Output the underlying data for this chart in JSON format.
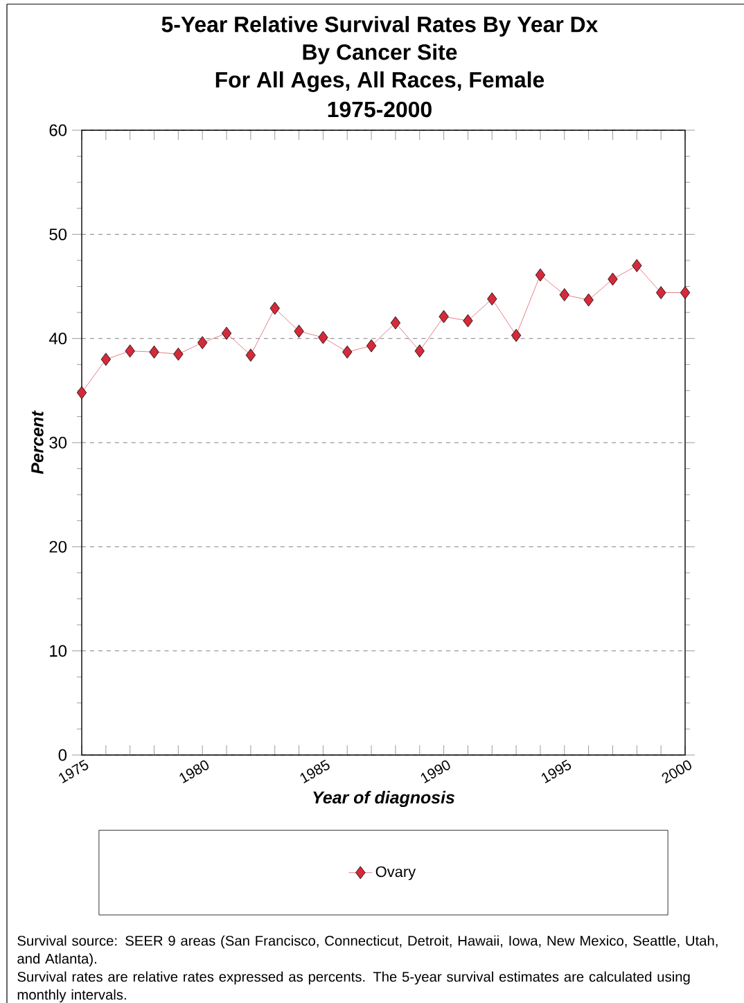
{
  "chart_data": {
    "type": "line",
    "title": "5-Year Relative Survival Rates By Year Dx",
    "subtitle": [
      "By Cancer Site",
      "For All Ages, All Races, Female",
      "1975-2000"
    ],
    "xlabel": "Year of diagnosis",
    "ylabel": "Percent",
    "x": [
      1975,
      1976,
      1977,
      1978,
      1979,
      1980,
      1981,
      1982,
      1983,
      1984,
      1985,
      1986,
      1987,
      1988,
      1989,
      1990,
      1991,
      1992,
      1993,
      1994,
      1995,
      1996,
      1997,
      1998,
      1999,
      2000
    ],
    "series": [
      {
        "name": "Ovary",
        "color": "#d42a3a",
        "values": [
          34.8,
          38.0,
          38.8,
          38.7,
          38.5,
          39.6,
          40.5,
          38.4,
          42.9,
          40.7,
          40.1,
          38.7,
          39.3,
          41.5,
          38.8,
          42.1,
          41.7,
          43.8,
          40.3,
          46.1,
          44.2,
          43.7,
          45.7,
          47.0,
          44.4,
          44.4
        ]
      }
    ],
    "xlim": [
      1975,
      2000
    ],
    "xticks": [
      1975,
      {
        "value": 1976,
        "label": null
      },
      {
        "value": 1977,
        "label": null
      },
      {
        "value": 1978,
        "label": null
      },
      {
        "value": 1979,
        "label": null
      },
      1980,
      {
        "value": 1981,
        "label": null
      },
      {
        "value": 1982,
        "label": null
      },
      {
        "value": 1983,
        "label": null
      },
      {
        "value": 1984,
        "label": null
      },
      1985,
      {
        "value": 1986,
        "label": null
      },
      {
        "value": 1987,
        "label": null
      },
      {
        "value": 1988,
        "label": null
      },
      {
        "value": 1989,
        "label": null
      },
      1990,
      {
        "value": 1991,
        "label": null
      },
      {
        "value": 1992,
        "label": null
      },
      {
        "value": 1993,
        "label": null
      },
      {
        "value": 1994,
        "label": null
      },
      1995,
      {
        "value": 1996,
        "label": null
      },
      {
        "value": 1997,
        "label": null
      },
      {
        "value": 1998,
        "label": null
      },
      {
        "value": 1999,
        "label": null
      },
      2000
    ],
    "ylim": [
      0,
      60
    ],
    "yticks": [
      0,
      10,
      20,
      30,
      40,
      50,
      60
    ],
    "grid": "y",
    "legend": "bottom",
    "marker": "diamond",
    "line_style": "solid",
    "annotations": [
      "Survival source: SEER 9 areas (San Francisco, Connecticut, Detroit, Hawaii, Iowa, New Mexico, Seattle, Utah, and Atlanta).",
      "Survival rates are relative rates expressed as percents. The 5-year survival estimates are calculated using monthly intervals."
    ]
  }
}
